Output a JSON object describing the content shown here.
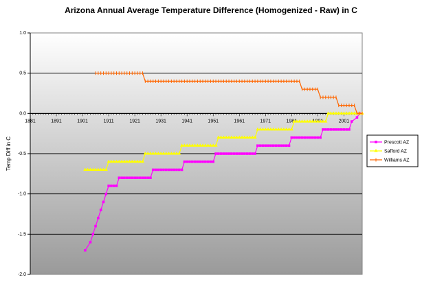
{
  "chart_data": {
    "type": "line",
    "title": "Arizona Annual Average Temperature Difference (Homogenized - Raw) in C",
    "xlabel": "",
    "ylabel": "Temp Diff in C",
    "ylim": [
      -2.0,
      1.0
    ],
    "xlim": [
      1881,
      2008
    ],
    "x_ticks": [
      "1881",
      "1891",
      "1901",
      "1911",
      "1921",
      "1931",
      "1941",
      "1951",
      "1961",
      "1971",
      "1981",
      "1991",
      "2001"
    ],
    "y_ticks": [
      "1.0",
      "0.5",
      "0.0",
      "-0.5",
      "-1.0",
      "-1.5",
      "-2.0"
    ],
    "grid": true,
    "legend_position": "right",
    "series": [
      {
        "name": "Prescott AZ",
        "color": "#ff00ff",
        "marker": "square",
        "points": [
          [
            1902,
            -1.7
          ],
          [
            1904,
            -1.6
          ],
          [
            1905,
            -1.5
          ],
          [
            1906,
            -1.4
          ],
          [
            1907,
            -1.3
          ],
          [
            1908,
            -1.2
          ],
          [
            1909,
            -1.1
          ],
          [
            1910,
            -1.0
          ],
          [
            1911,
            -0.9
          ],
          [
            1914,
            -0.9
          ],
          [
            1915,
            -0.8
          ],
          [
            1927,
            -0.8
          ],
          [
            1928,
            -0.7
          ],
          [
            1939,
            -0.7
          ],
          [
            1940,
            -0.6
          ],
          [
            1951,
            -0.6
          ],
          [
            1952,
            -0.5
          ],
          [
            1967,
            -0.5
          ],
          [
            1968,
            -0.4
          ],
          [
            1980,
            -0.4
          ],
          [
            1981,
            -0.3
          ],
          [
            1992,
            -0.3
          ],
          [
            1993,
            -0.2
          ],
          [
            2003,
            -0.2
          ],
          [
            2004,
            -0.1
          ],
          [
            2006,
            -0.05
          ],
          [
            2007,
            0.0
          ]
        ]
      },
      {
        "name": "Safford AZ",
        "color": "#ffff00",
        "marker": "triangle",
        "points": [
          [
            1902,
            -0.7
          ],
          [
            1910,
            -0.7
          ],
          [
            1911,
            -0.6
          ],
          [
            1924,
            -0.6
          ],
          [
            1925,
            -0.5
          ],
          [
            1938,
            -0.5
          ],
          [
            1939,
            -0.4
          ],
          [
            1952,
            -0.4
          ],
          [
            1953,
            -0.3
          ],
          [
            1967,
            -0.3
          ],
          [
            1968,
            -0.2
          ],
          [
            1981,
            -0.2
          ],
          [
            1982,
            -0.1
          ],
          [
            1994,
            -0.1
          ],
          [
            1995,
            0.0
          ],
          [
            2008,
            0.0
          ]
        ]
      },
      {
        "name": "Williams AZ",
        "color": "#ff6600",
        "marker": "tick",
        "points": [
          [
            1906,
            0.5
          ],
          [
            1924,
            0.5
          ],
          [
            1925,
            0.4
          ],
          [
            1984,
            0.4
          ],
          [
            1985,
            0.3
          ],
          [
            1991,
            0.3
          ],
          [
            1992,
            0.2
          ],
          [
            1998,
            0.2
          ],
          [
            1999,
            0.1
          ],
          [
            2005,
            0.1
          ],
          [
            2006,
            0.0
          ],
          [
            2008,
            0.0
          ]
        ]
      }
    ]
  }
}
